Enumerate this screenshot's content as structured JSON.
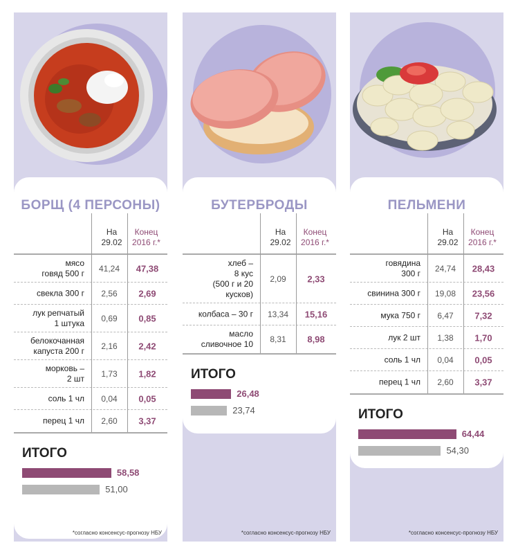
{
  "chart_data": [
    {
      "type": "table",
      "title": "БОРЩ (4 ПЕРСОНЫ)",
      "columns": [
        "На\n29.02",
        "Конец\n2016 г.*"
      ],
      "rows": [
        {
          "item": "мясо\nговяд 500 г",
          "now": "41,24",
          "end": "47,38"
        },
        {
          "item": "свекла 300 г",
          "now": "2,56",
          "end": "2,69"
        },
        {
          "item": "лук репчатый\n1 штука",
          "now": "0,69",
          "end": "0,85"
        },
        {
          "item": "белокочанная\nкапуста 200 г",
          "now": "2,16",
          "end": "2,42"
        },
        {
          "item": "морковь –\n2 шт",
          "now": "1,73",
          "end": "1,82"
        },
        {
          "item": "соль 1 чл",
          "now": "0,04",
          "end": "0,05"
        },
        {
          "item": "перец 1 чл",
          "now": "2,60",
          "end": "3,37"
        }
      ],
      "total": {
        "label": "ИТОГО",
        "end": 58.58,
        "now": 51.0,
        "end_label": "58,58",
        "now_label": "51,00"
      },
      "footnote": "*согласно консенсус-прогнозу НБУ"
    },
    {
      "type": "table",
      "title": "БУТЕРБРОДЫ",
      "columns": [
        "На\n29.02",
        "Конец\n2016 г.*"
      ],
      "rows": [
        {
          "item": "хлеб –\n8 кус\n(500 г и 20\nкусков)",
          "now": "2,09",
          "end": "2,33"
        },
        {
          "item": "колбаса – 30 г",
          "now": "13,34",
          "end": "15,16"
        },
        {
          "item": "масло\nсливочное 10",
          "now": "8,31",
          "end": "8,98"
        }
      ],
      "total": {
        "label": "ИТОГО",
        "end": 26.48,
        "now": 23.74,
        "end_label": "26,48",
        "now_label": "23,74"
      },
      "footnote": "*согласно консенсус-прогнозу НБУ"
    },
    {
      "type": "table",
      "title": "ПЕЛЬМЕНИ",
      "columns": [
        "На\n29.02",
        "Конец\n2016 г.*"
      ],
      "rows": [
        {
          "item": "говядина\n300 г",
          "now": "24,74",
          "end": "28,43"
        },
        {
          "item": "свинина 300 г",
          "now": "19,08",
          "end": "23,56"
        },
        {
          "item": "мука 750 г",
          "now": "6,47",
          "end": "7,32"
        },
        {
          "item": "лук 2 шт",
          "now": "1,38",
          "end": "1,70"
        },
        {
          "item": "соль 1 чл",
          "now": "0,04",
          "end": "0,05"
        },
        {
          "item": "перец 1 чл",
          "now": "2,60",
          "end": "3,37"
        }
      ],
      "total": {
        "label": "ИТОГО",
        "end": 64.44,
        "now": 54.3,
        "end_label": "64,44",
        "now_label": "54,30"
      },
      "footnote": "*согласно консенсус-прогнозу НБУ"
    }
  ],
  "colors": {
    "accent": "#8e4a74",
    "title": "#9a96c4",
    "panel": "#d7d5ea",
    "bar_now": "#b7b7b7"
  },
  "icons": [
    "borscht-bowl-image",
    "sandwich-image",
    "dumplings-plate-image"
  ]
}
